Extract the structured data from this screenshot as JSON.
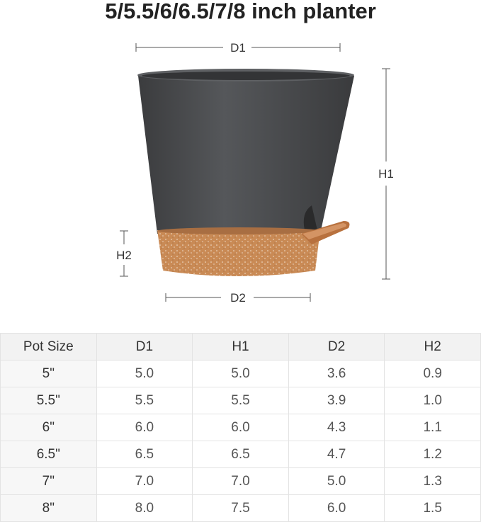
{
  "title": "5/5.5/6/6.5/7/8 inch planter",
  "dimensions": {
    "d1": "D1",
    "h1": "H1",
    "d2": "D2",
    "h2": "H2"
  },
  "colors": {
    "pot_body": "#4a4b4d",
    "pot_base": "#c98a55",
    "spout": "#b8713e"
  },
  "table": {
    "headers": [
      "Pot Size",
      "D1",
      "H1",
      "D2",
      "H2"
    ],
    "rows": [
      [
        "5\"",
        "5.0",
        "5.0",
        "3.6",
        "0.9"
      ],
      [
        "5.5\"",
        "5.5",
        "5.5",
        "3.9",
        "1.0"
      ],
      [
        "6\"",
        "6.0",
        "6.0",
        "4.3",
        "1.1"
      ],
      [
        "6.5\"",
        "6.5",
        "6.5",
        "4.7",
        "1.2"
      ],
      [
        "7\"",
        "7.0",
        "7.0",
        "5.0",
        "1.3"
      ],
      [
        "8\"",
        "8.0",
        "7.5",
        "6.0",
        "1.5"
      ]
    ]
  }
}
